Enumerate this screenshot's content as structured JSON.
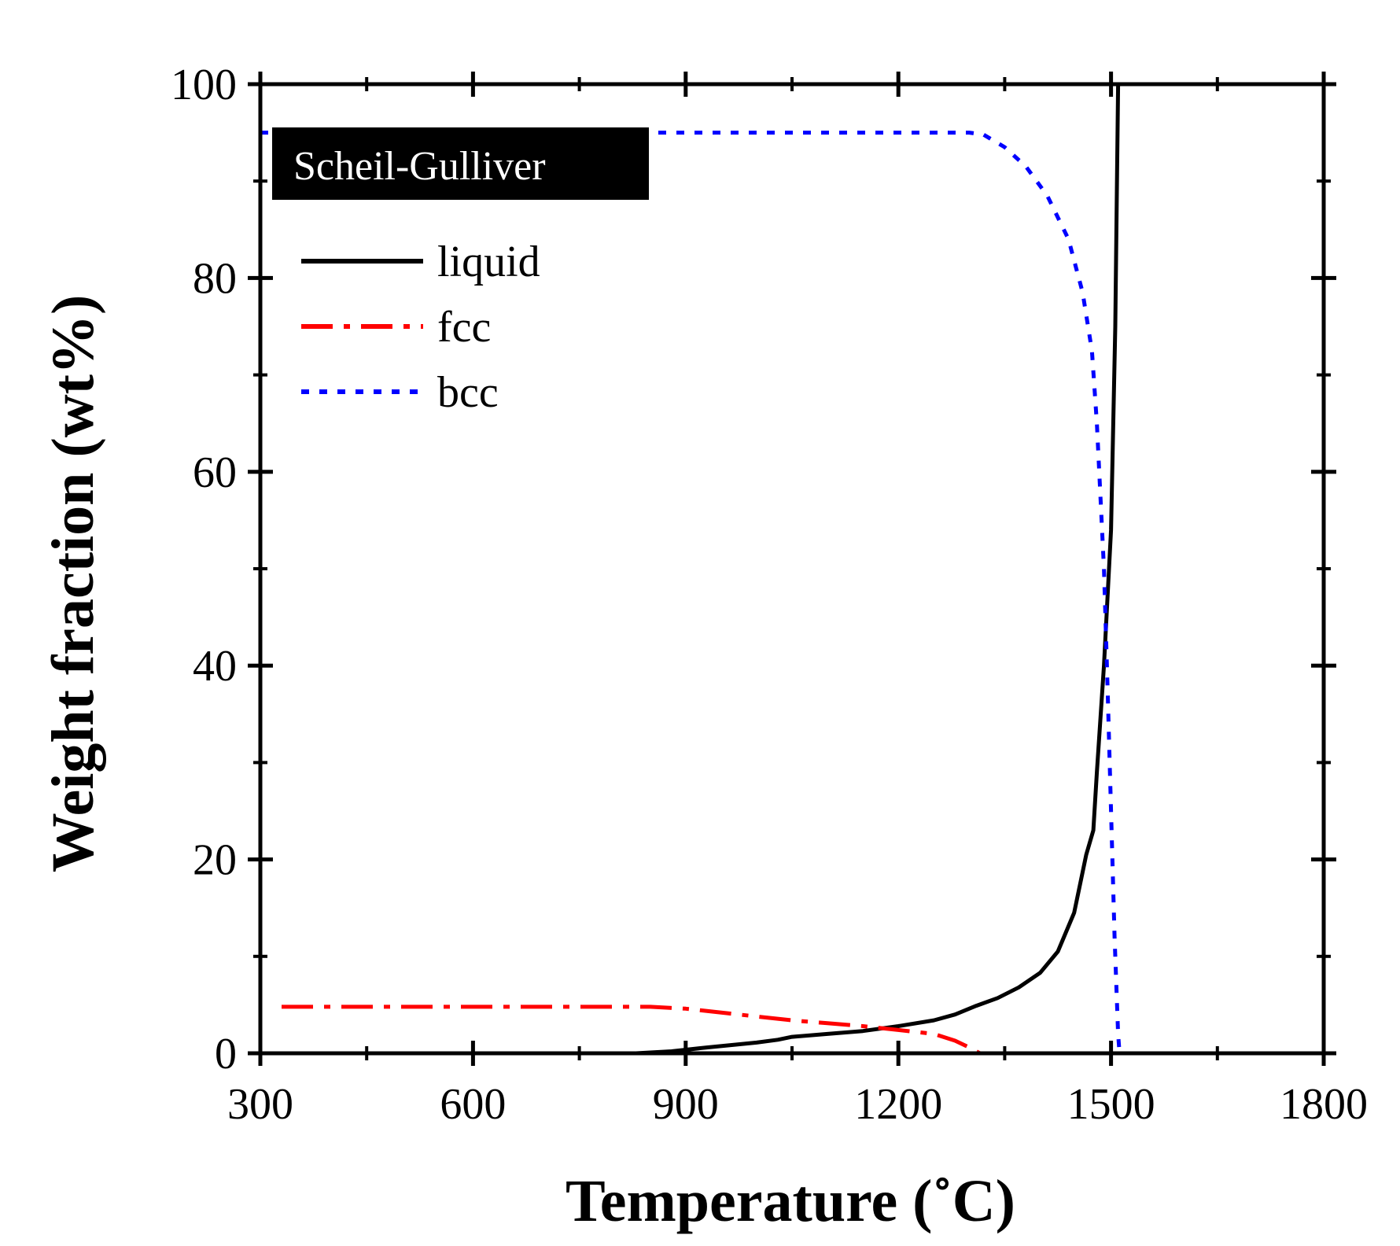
{
  "chart_data": {
    "type": "line",
    "title": "",
    "annotation": "Scheil-Gulliver",
    "xlabel": "Temperature (˚C)",
    "ylabel": "Weight fraction (wt%)",
    "xlim": [
      300,
      1800
    ],
    "ylim": [
      0,
      100
    ],
    "xticks": [
      300,
      600,
      900,
      1200,
      1500,
      1800
    ],
    "xtick_labels": [
      "300",
      "600",
      "900",
      "1200",
      "1500",
      "1800"
    ],
    "yticks": [
      0,
      20,
      40,
      60,
      80,
      100
    ],
    "ytick_labels": [
      "0",
      "20",
      "40",
      "60",
      "80",
      "100"
    ],
    "x_minor_step": 150,
    "y_minor_step": 10,
    "grid": false,
    "legend_position": "top-left",
    "series": [
      {
        "name": "liquid",
        "color": "#000000",
        "style": "solid",
        "x": [
          300,
          830,
          880,
          930,
          1000,
          1030,
          1050,
          1100,
          1150,
          1200,
          1250,
          1280,
          1310,
          1340,
          1370,
          1400,
          1425,
          1448,
          1465,
          1475,
          1480,
          1490,
          1500,
          1506,
          1510,
          1800
        ],
        "y": [
          0,
          0,
          0.2,
          0.6,
          1.1,
          1.4,
          1.7,
          2.0,
          2.3,
          2.8,
          3.4,
          4.0,
          4.9,
          5.7,
          6.8,
          8.3,
          10.5,
          14.5,
          20.5,
          23.0,
          29.0,
          40.0,
          54.0,
          75.0,
          100.0,
          100.0
        ]
      },
      {
        "name": "fcc",
        "color": "#ff0000",
        "style": "dashdot",
        "x": [
          330,
          450,
          600,
          750,
          850,
          900,
          1000,
          1050,
          1100,
          1150,
          1200,
          1250,
          1280,
          1300,
          1315,
          1800
        ],
        "y": [
          4.8,
          4.8,
          4.8,
          4.8,
          4.8,
          4.6,
          3.8,
          3.4,
          3.1,
          2.8,
          2.4,
          2.0,
          1.3,
          0.6,
          0.0,
          0.0
        ]
      },
      {
        "name": "bcc",
        "color": "#0000ff",
        "style": "dotted",
        "x": [
          300,
          600,
          900,
          1200,
          1300,
          1320,
          1350,
          1380,
          1410,
          1440,
          1460,
          1473,
          1480,
          1490,
          1495,
          1500,
          1505,
          1510,
          1512,
          1800
        ],
        "y": [
          95.0,
          95.0,
          95.0,
          95.0,
          95.0,
          94.8,
          93.5,
          91.5,
          88.5,
          84.0,
          78.5,
          72.5,
          65.0,
          50.0,
          38.0,
          25.0,
          12.0,
          2.0,
          0.0,
          0.0
        ]
      }
    ]
  }
}
